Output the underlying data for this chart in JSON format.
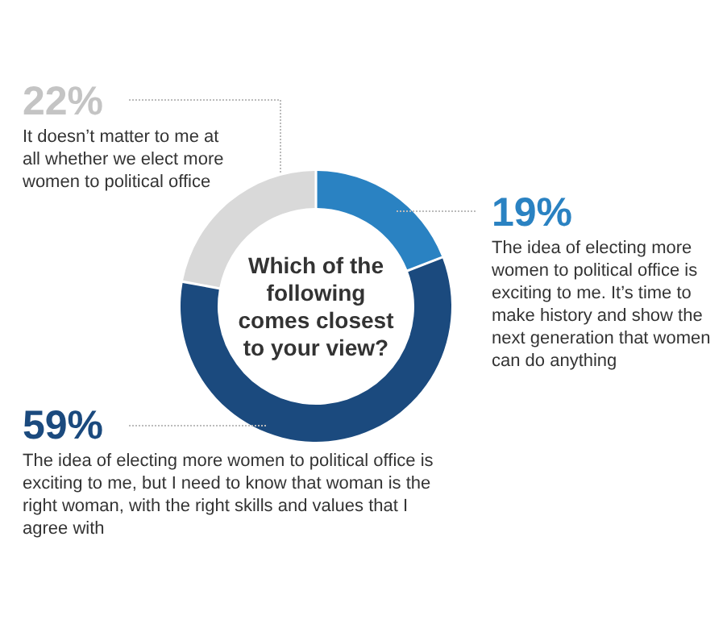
{
  "chart_data": {
    "type": "donut",
    "title": "Which of the following comes closest to your view?",
    "categories": [
      "The idea of electing more women to political office is exciting to me. It’s time to make history and show the next generation that women can do anything",
      "The idea of electing more women to political office is exciting to me, but I need to know that woman is the right woman, with the right skills and values that I agree with",
      "It doesn’t matter to me at all whether we elect more women to political office"
    ],
    "values": [
      19,
      59,
      22
    ],
    "colors": [
      "#2a82c2",
      "#1b4a7e",
      "#d9d9d9"
    ],
    "value_labels": [
      "19%",
      "59%",
      "22%"
    ]
  }
}
